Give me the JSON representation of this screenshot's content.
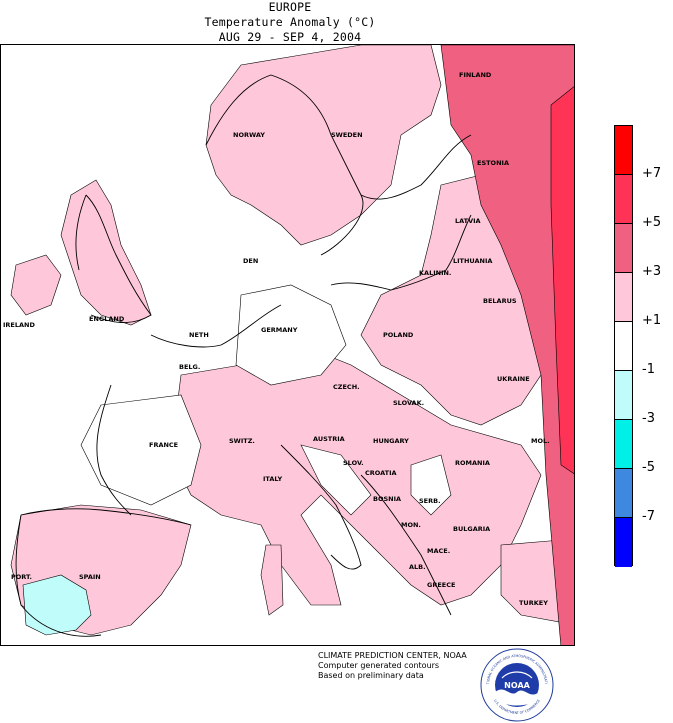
{
  "header": {
    "region": "EUROPE",
    "subtitle": "Temperature Anomaly (°C)",
    "period": "AUG 29 - SEP 4, 2004"
  },
  "legend": {
    "bins": [
      {
        "color": "#ff0000"
      },
      {
        "color": "#ff3355"
      },
      {
        "color": "#f06080"
      },
      {
        "color": "#ffc8da"
      },
      {
        "color": "#ffffff"
      },
      {
        "color": "#c0fcfa"
      },
      {
        "color": "#00f0e8"
      },
      {
        "color": "#3f88e0"
      },
      {
        "color": "#0000ff"
      }
    ],
    "labels": [
      "+7",
      "+5",
      "+3",
      "+1",
      "-1",
      "-3",
      "-5",
      "-7"
    ]
  },
  "countries": [
    "FINLAND",
    "NORWAY",
    "SWEDEN",
    "ESTONIA",
    "LATVIA",
    "DEN",
    "LITHUANIA",
    "KALININ.",
    "BELARUS",
    "ENGLAND",
    "IRELAND",
    "NETH",
    "GERMANY",
    "POLAND",
    "BELG.",
    "CZECH.",
    "SLOVAK.",
    "UKRAINE",
    "FRANCE",
    "SWITZ.",
    "AUSTRIA",
    "HUNGARY",
    "MOL.",
    "SLOV.",
    "CROATIA",
    "ROMANIA",
    "ITALY",
    "BOSNIA",
    "SERB.",
    "MON.",
    "BULGARIA",
    "MACE.",
    "ALB.",
    "GREECE",
    "TURKEY",
    "PORT.",
    "SPAIN"
  ],
  "credits": {
    "line1": "CLIMATE PREDICTION CENTER, NOAA",
    "line2": "Computer generated contours",
    "line3": "Based on preliminary data"
  },
  "logo": {
    "text": "NOAA",
    "ring_top": "NATIONAL OCEANIC AND ATMOSPHERIC ADMINISTRATION",
    "ring_bottom": "U.S. DEPARTMENT OF COMMERCE"
  }
}
